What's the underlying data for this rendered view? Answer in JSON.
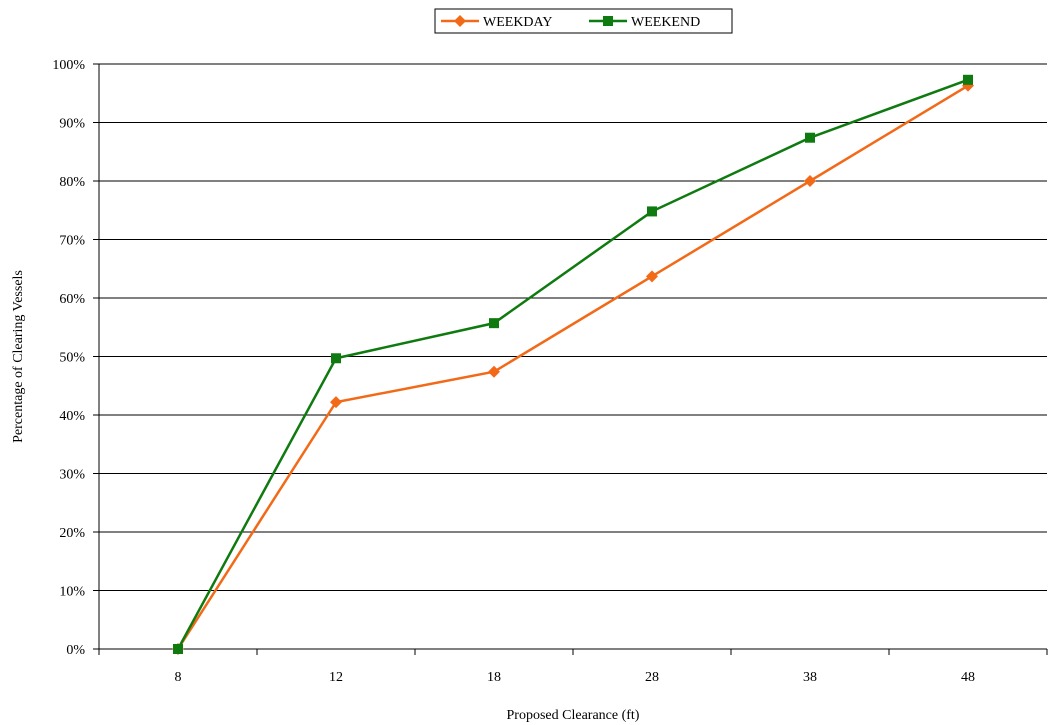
{
  "chart_data": {
    "type": "line",
    "categories": [
      "8",
      "12",
      "18",
      "28",
      "38",
      "48"
    ],
    "series": [
      {
        "name": "WEEKDAY",
        "values": [
          0,
          42.2,
          47.4,
          63.7,
          80.0,
          96.3
        ],
        "color": "#f26a18",
        "marker": "diamond"
      },
      {
        "name": "WEEKEND",
        "values": [
          0,
          49.7,
          55.7,
          74.8,
          87.4,
          97.3
        ],
        "color": "#0f7a0f",
        "marker": "square"
      }
    ],
    "xlabel": "Proposed Clearance (ft)",
    "ylabel": "Percentage of Clearing Vessels",
    "ylim": [
      0,
      100
    ],
    "yticks": [
      "0%",
      "10%",
      "20%",
      "30%",
      "40%",
      "50%",
      "60%",
      "70%",
      "80%",
      "90%",
      "100%"
    ],
    "grid": "horizontal",
    "legend": "top-center"
  }
}
